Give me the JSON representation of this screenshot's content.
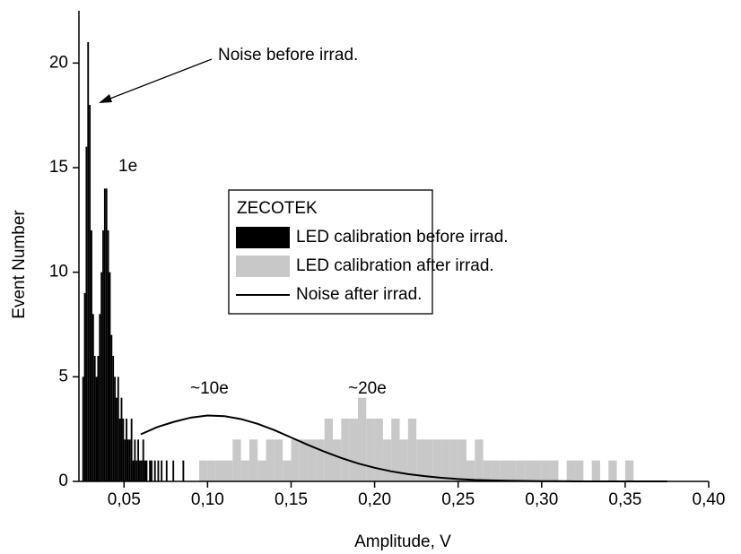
{
  "chart_data": {
    "type": "histogram",
    "xlabel": "Amplitude, V",
    "ylabel": "Event Number",
    "xlim": [
      0.023,
      0.4
    ],
    "ylim": [
      0,
      22.5
    ],
    "xticks": [
      {
        "value": 0.05,
        "label": "0,05"
      },
      {
        "value": 0.1,
        "label": "0,10"
      },
      {
        "value": 0.15,
        "label": "0,15"
      },
      {
        "value": 0.2,
        "label": "0,20"
      },
      {
        "value": 0.25,
        "label": "0,25"
      },
      {
        "value": 0.3,
        "label": "0,30"
      },
      {
        "value": 0.35,
        "label": "0,35"
      },
      {
        "value": 0.4,
        "label": "0,40"
      }
    ],
    "yticks": [
      0,
      5,
      10,
      15,
      20
    ],
    "legend_title": "ZECOTEK",
    "annotations": [
      "Noise before irrad.",
      "1e",
      "~10e",
      "~20e"
    ],
    "series": [
      {
        "name": "LED calibration before irrad.",
        "type": "histogram",
        "color": "#000000",
        "bins": [
          0.025,
          0.026,
          0.027,
          0.028,
          0.029,
          0.03,
          0.031,
          0.032,
          0.033,
          0.034,
          0.035,
          0.036,
          0.037,
          0.038,
          0.039,
          0.04,
          0.041,
          0.042,
          0.043,
          0.044,
          0.045,
          0.046,
          0.047,
          0.048,
          0.049,
          0.05,
          0.051,
          0.052,
          0.053,
          0.054,
          0.055,
          0.056,
          0.057,
          0.058,
          0.059,
          0.06,
          0.061,
          0.062,
          0.063,
          0.064,
          0.065,
          0.066,
          0.067,
          0.068,
          0.069,
          0.07,
          0.071,
          0.072,
          0.073,
          0.074,
          0.075,
          0.076,
          0.077,
          0.078,
          0.079,
          0.08,
          0.081,
          0.082,
          0.083,
          0.084,
          0.085,
          0.086,
          0.087,
          0.088,
          0.089,
          0.09
        ],
        "values": [
          5,
          9,
          16,
          21,
          18,
          12,
          8,
          6,
          5,
          6,
          8,
          10,
          12,
          14,
          14,
          12,
          10,
          7,
          6,
          5,
          4,
          5,
          3,
          4,
          3,
          2,
          3,
          2,
          2,
          3,
          1,
          2,
          1,
          2,
          1,
          1,
          2,
          1,
          1,
          0,
          1,
          1,
          0,
          1,
          0,
          1,
          0,
          1,
          0,
          0,
          1,
          0,
          0,
          0,
          1,
          0,
          0,
          0,
          0,
          0,
          1,
          0,
          0,
          0,
          0
        ]
      },
      {
        "name": "LED calibration after irrad.",
        "type": "histogram",
        "color": "#c8c8c8",
        "bins": [
          0.09,
          0.095,
          0.1,
          0.105,
          0.11,
          0.115,
          0.12,
          0.125,
          0.13,
          0.135,
          0.14,
          0.145,
          0.15,
          0.155,
          0.16,
          0.165,
          0.17,
          0.175,
          0.18,
          0.185,
          0.19,
          0.195,
          0.2,
          0.205,
          0.21,
          0.215,
          0.22,
          0.225,
          0.23,
          0.235,
          0.24,
          0.245,
          0.25,
          0.255,
          0.26,
          0.265,
          0.27,
          0.275,
          0.28,
          0.285,
          0.29,
          0.295,
          0.3,
          0.305,
          0.31,
          0.315,
          0.32,
          0.325,
          0.33,
          0.335,
          0.34,
          0.345,
          0.35,
          0.355,
          0.36
        ],
        "values": [
          0,
          1,
          1,
          1,
          1,
          2,
          1,
          2,
          1,
          2,
          2,
          1,
          2,
          2,
          2,
          2,
          3,
          2,
          3,
          3,
          4,
          3,
          3,
          2,
          3,
          2,
          3,
          2,
          2,
          2,
          2,
          2,
          2,
          1,
          2,
          1,
          1,
          1,
          1,
          1,
          1,
          1,
          1,
          1,
          0,
          1,
          1,
          0,
          1,
          0,
          1,
          0,
          1,
          0
        ]
      },
      {
        "name": "Noise after irrad.",
        "type": "line",
        "color": "#000000",
        "x": [
          0.06,
          0.07,
          0.08,
          0.09,
          0.1,
          0.11,
          0.12,
          0.13,
          0.14,
          0.15,
          0.16,
          0.17,
          0.18,
          0.19,
          0.2,
          0.21,
          0.22,
          0.23,
          0.24,
          0.25,
          0.26,
          0.27,
          0.28,
          0.29,
          0.3,
          0.31,
          0.32,
          0.33,
          0.34,
          0.35,
          0.36,
          0.37,
          0.375
        ],
        "values": [
          2.25,
          2.6,
          2.85,
          3.05,
          3.15,
          3.12,
          2.98,
          2.75,
          2.45,
          2.1,
          1.75,
          1.42,
          1.12,
          0.86,
          0.65,
          0.48,
          0.35,
          0.25,
          0.17,
          0.11,
          0.07,
          0.05,
          0.03,
          0.02,
          0.01,
          0.01,
          0,
          0,
          0,
          0,
          0,
          0,
          0
        ]
      }
    ]
  }
}
